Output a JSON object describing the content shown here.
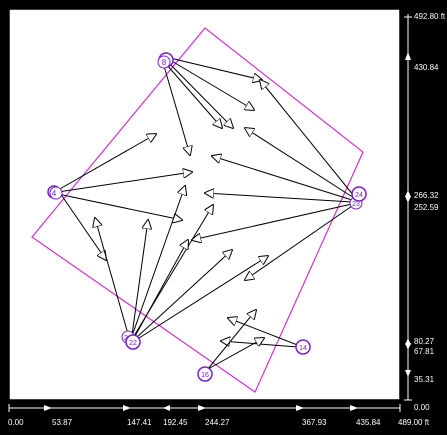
{
  "ruler_right": {
    "labels": [
      "492.80 ft",
      "430.84",
      "266.32",
      "252.59",
      "80.27",
      "67.81",
      "35.31",
      "0.00"
    ]
  },
  "ruler_bottom": {
    "labels": [
      "0.00",
      "53.87",
      "147.41",
      "192.45",
      "244.27",
      "367.93",
      "435.84",
      "489.00 ft"
    ]
  },
  "nodes": {
    "n4": "4",
    "n8": "8",
    "n14": "14",
    "n16": "16",
    "n22": "22",
    "n23": "23",
    "n24": "24",
    "n2x": "2"
  },
  "colors": {
    "frame": "#000000",
    "canvas": "#ffffff",
    "boundary": "#d033d0",
    "node": "#7a1fd0",
    "arrow": "#000000"
  }
}
